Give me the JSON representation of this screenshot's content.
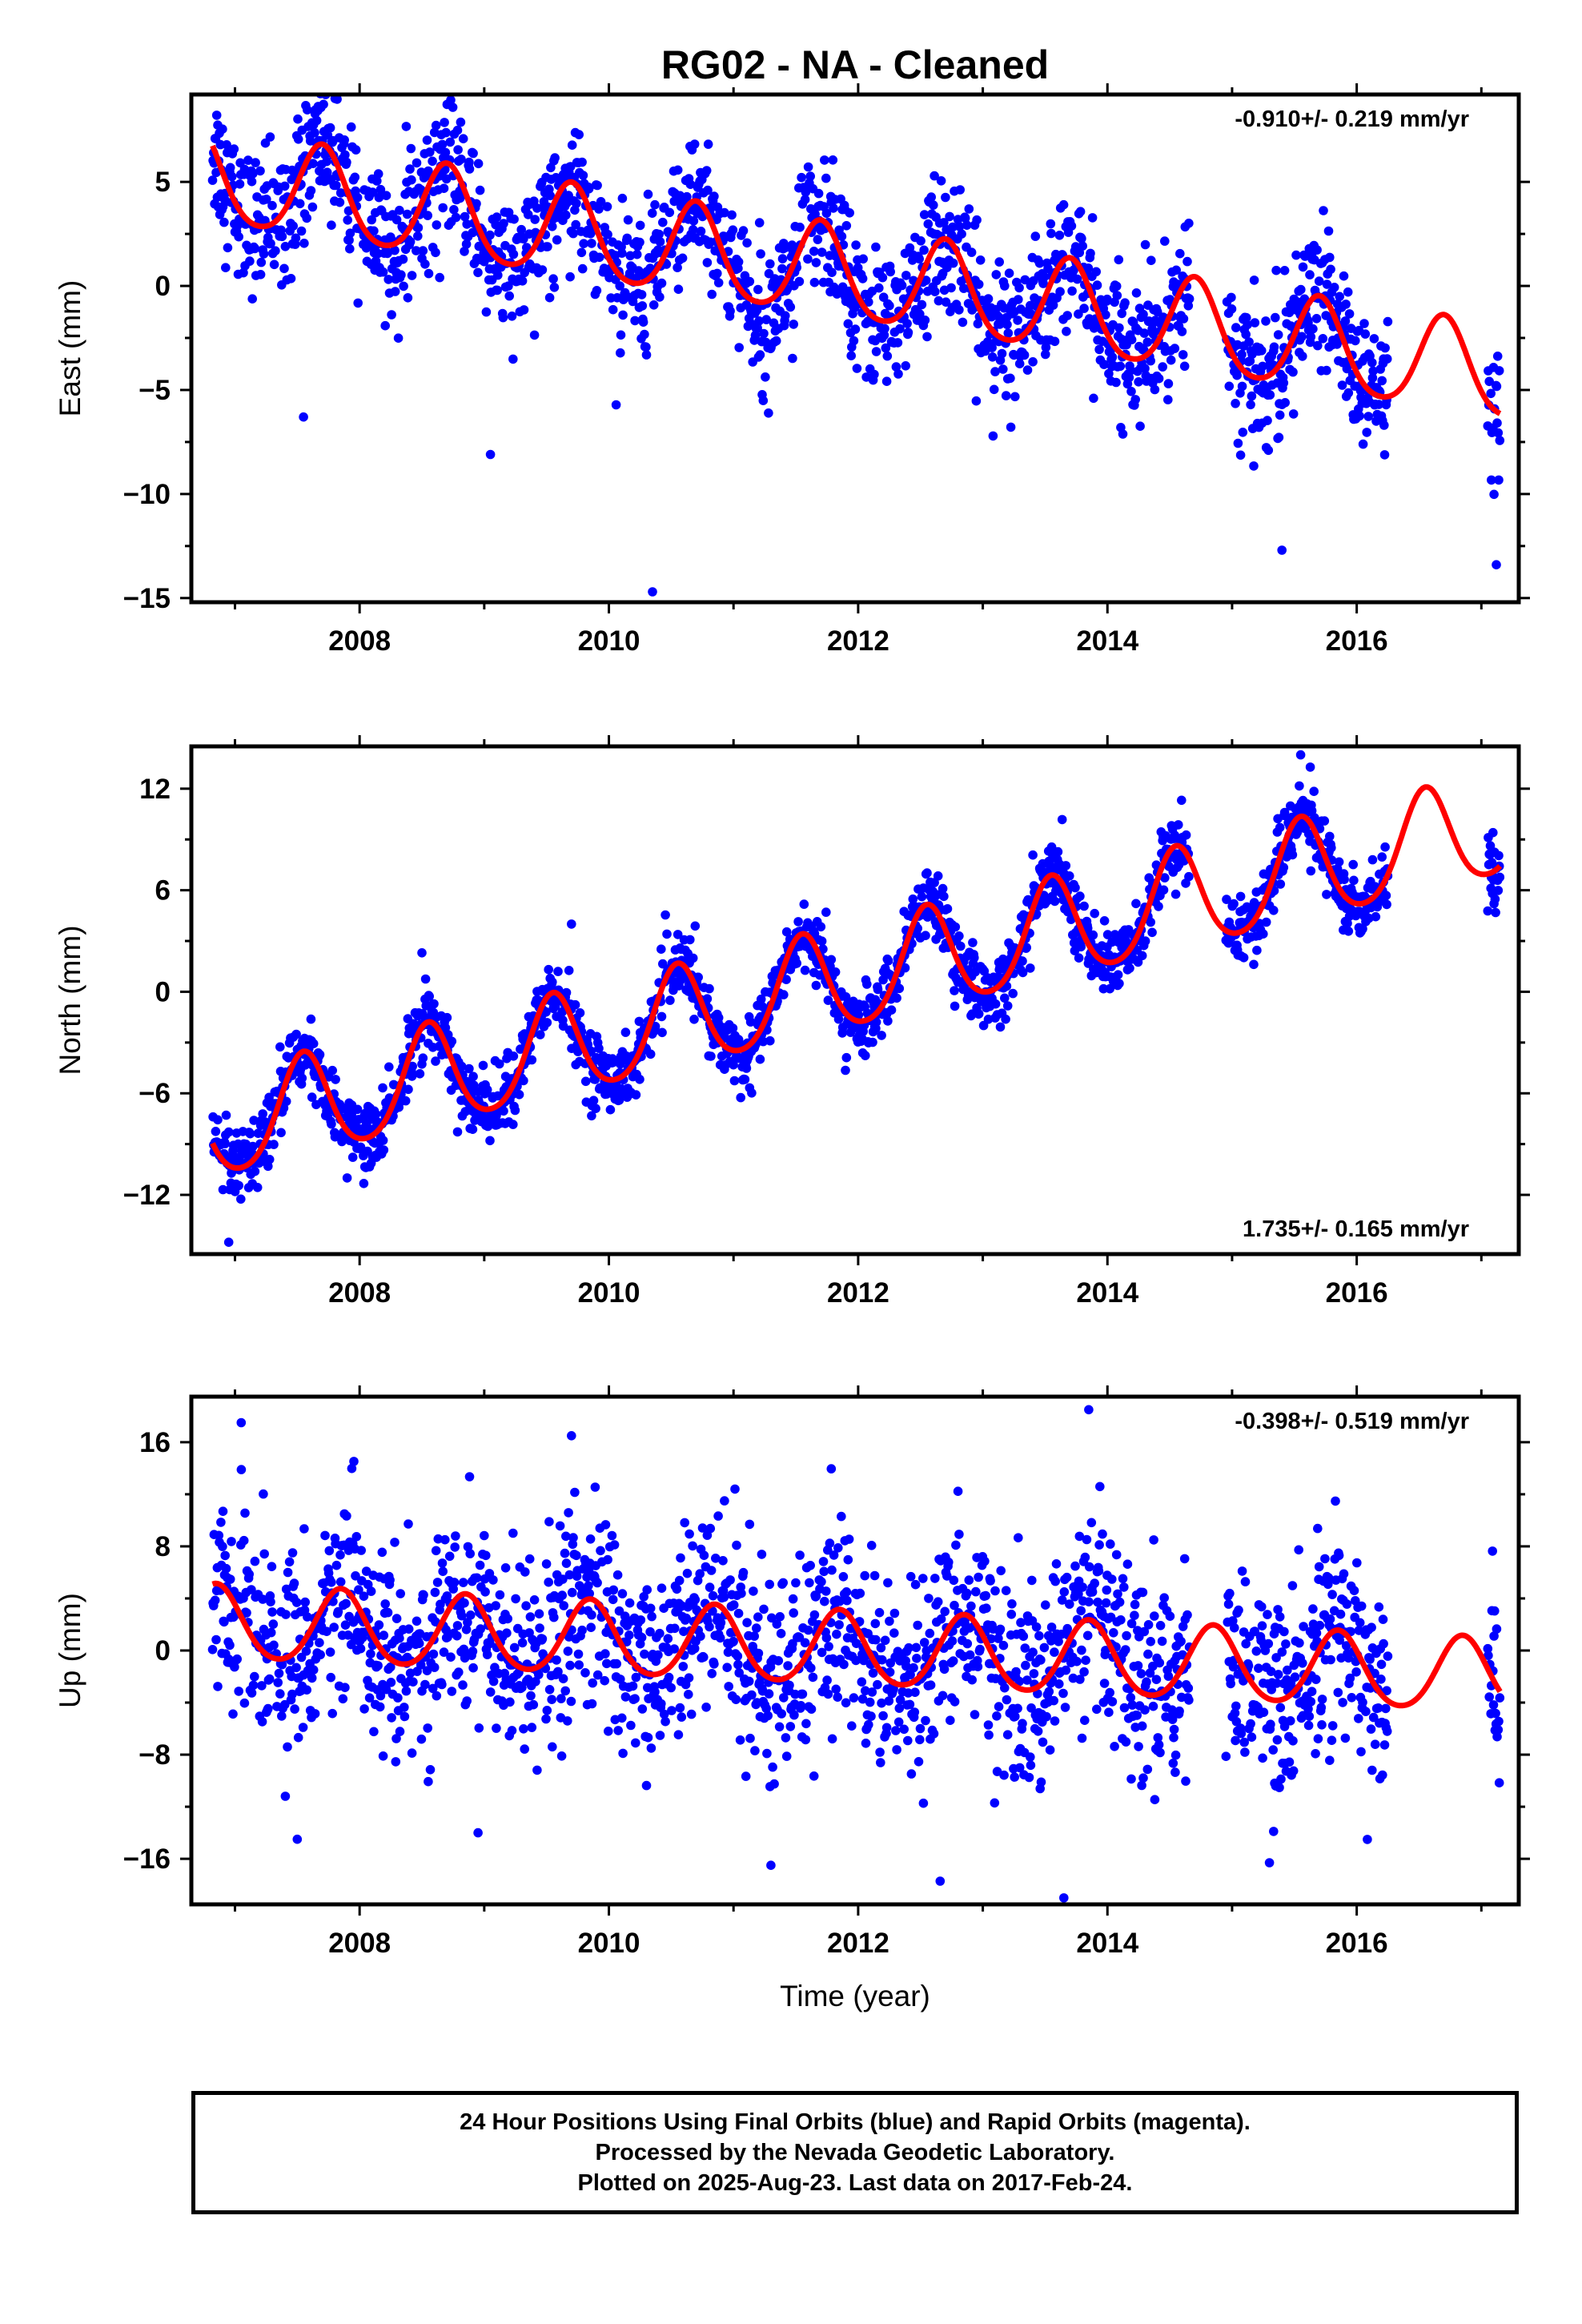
{
  "title": "RG02  - NA - Cleaned",
  "footer": {
    "line1": "24 Hour Positions Using Final Orbits (blue) and Rapid Orbits (magenta).",
    "line2": "Processed by the Nevada Geodetic Laboratory.",
    "line3": "Plotted on 2025-Aug-23. Last data on 2017-Feb-24."
  },
  "colors": {
    "points": "#0000ff",
    "model": "#ff0000",
    "frame": "#000000"
  },
  "chart_data": [
    {
      "type": "scatter",
      "component": "east",
      "ylabel": "East (mm)",
      "xlabel": "",
      "xlim": [
        2006.65,
        2017.3
      ],
      "ylim": [
        -15.2,
        9.2
      ],
      "xticks": [
        2008,
        2010,
        2012,
        2014,
        2016
      ],
      "yticks": [
        5,
        0,
        -5,
        -10,
        -15
      ],
      "ytick_labels": [
        "5",
        "0",
        "−5",
        "−10",
        "−15"
      ],
      "rate_label": "-0.910+/- 0.219 mm/yr",
      "rate_position": "top-right",
      "model": {
        "rate": -0.91,
        "intercept_2012": 0.4,
        "annual_amp": 2.2,
        "annual_peak": 0.7,
        "semi_amp": 0.3,
        "data_gaps": [
          [
            2014.66,
            2014.95
          ],
          [
            2016.25,
            2017.05
          ]
        ]
      },
      "scatter_sd": 1.6,
      "outliers": [
        [
          2010.35,
          -14.7
        ],
        [
          2015.4,
          -12.7
        ],
        [
          2017.12,
          -13.4
        ],
        [
          2009.05,
          -8.1
        ],
        [
          2007.55,
          -6.3
        ]
      ]
    },
    {
      "type": "scatter",
      "component": "north",
      "ylabel": "North (mm)",
      "xlabel": "",
      "xlim": [
        2006.65,
        2017.3
      ],
      "ylim": [
        -15.5,
        14.5
      ],
      "xticks": [
        2008,
        2010,
        2012,
        2014,
        2016
      ],
      "yticks": [
        12,
        6,
        0,
        -6,
        -12
      ],
      "ytick_labels": [
        "12",
        "6",
        "0",
        "−6",
        "−12"
      ],
      "rate_label": "1.735+/- 0.165 mm/yr",
      "rate_position": "bottom-right",
      "model": {
        "rate": 1.735,
        "intercept_2012": 0.8,
        "annual_amp": 3.0,
        "annual_peak": 0.55,
        "semi_amp": 0.4,
        "data_gaps": [
          [
            2014.66,
            2014.95
          ],
          [
            2016.25,
            2017.05
          ]
        ]
      },
      "scatter_sd": 1.0,
      "outliers": [
        [
          2006.95,
          -14.8
        ],
        [
          2007.9,
          -11.0
        ],
        [
          2015.55,
          14.0
        ],
        [
          2008.5,
          2.3
        ],
        [
          2009.7,
          4.0
        ]
      ]
    },
    {
      "type": "scatter",
      "component": "up",
      "ylabel": "Up (mm)",
      "xlabel": "Time (year)",
      "xlim": [
        2006.65,
        2017.3
      ],
      "ylim": [
        -19.5,
        19.5
      ],
      "xticks": [
        2008,
        2010,
        2012,
        2014,
        2016
      ],
      "yticks": [
        16,
        8,
        0,
        -8,
        -16
      ],
      "ytick_labels": [
        "16",
        "8",
        "0",
        "−8",
        "−16"
      ],
      "rate_label": "-0.398+/- 0.519 mm/yr",
      "rate_position": "top-right",
      "model": {
        "rate": -0.398,
        "intercept_2012": 0.0,
        "annual_amp": 2.8,
        "annual_peak": 0.85,
        "semi_amp": 0.3,
        "data_gaps": [
          [
            2014.66,
            2014.95
          ],
          [
            2016.25,
            2017.05
          ]
        ]
      },
      "scatter_sd": 3.8,
      "outliers": [
        [
          2007.05,
          17.5
        ],
        [
          2013.85,
          18.5
        ],
        [
          2009.7,
          16.5
        ],
        [
          2013.65,
          -19.0
        ],
        [
          2011.3,
          -16.5
        ],
        [
          2015.3,
          -16.3
        ],
        [
          2007.5,
          -14.5
        ],
        [
          2008.95,
          -14.0
        ]
      ]
    }
  ]
}
